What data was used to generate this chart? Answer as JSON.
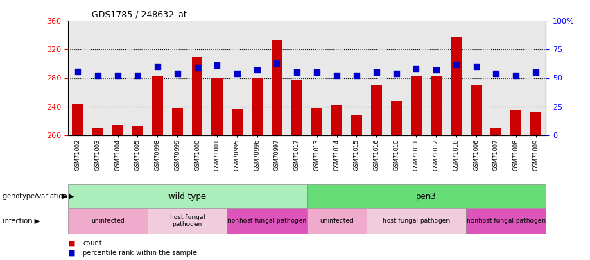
{
  "title": "GDS1785 / 248632_at",
  "samples": [
    "GSM71002",
    "GSM71003",
    "GSM71004",
    "GSM71005",
    "GSM70998",
    "GSM70999",
    "GSM71000",
    "GSM71001",
    "GSM70995",
    "GSM70996",
    "GSM70997",
    "GSM71017",
    "GSM71013",
    "GSM71014",
    "GSM71015",
    "GSM71016",
    "GSM71010",
    "GSM71011",
    "GSM71012",
    "GSM71018",
    "GSM71006",
    "GSM71007",
    "GSM71008",
    "GSM71009"
  ],
  "counts": [
    244,
    210,
    215,
    213,
    283,
    238,
    310,
    280,
    237,
    280,
    334,
    278,
    238,
    242,
    228,
    270,
    248,
    283,
    283,
    337,
    270,
    210,
    235,
    232
  ],
  "percentiles": [
    56,
    52,
    52,
    52,
    60,
    54,
    59,
    61,
    54,
    57,
    63,
    55,
    55,
    52,
    52,
    55,
    54,
    58,
    57,
    62,
    60,
    54,
    52,
    55
  ],
  "ylim_left": [
    200,
    360
  ],
  "yticks_left": [
    200,
    240,
    280,
    320,
    360
  ],
  "ylim_right": [
    0,
    100
  ],
  "yticks_right": [
    0,
    25,
    50,
    75,
    100
  ],
  "bar_color": "#cc0000",
  "dot_color": "#0000cc",
  "bar_width": 0.55,
  "genotype_groups": [
    {
      "label": "wild type",
      "start": 0,
      "end": 11,
      "color": "#aaeebb"
    },
    {
      "label": "pen3",
      "start": 12,
      "end": 23,
      "color": "#66dd77"
    }
  ],
  "infection_groups": [
    {
      "label": "uninfected",
      "start": 0,
      "end": 3,
      "color": "#f0aacc"
    },
    {
      "label": "host fungal\npathogen",
      "start": 4,
      "end": 7,
      "color": "#f0ccdd"
    },
    {
      "label": "nonhost fungal pathogen",
      "start": 8,
      "end": 11,
      "color": "#dd55bb"
    },
    {
      "label": "uninfected",
      "start": 12,
      "end": 14,
      "color": "#f0aacc"
    },
    {
      "label": "host fungal pathogen",
      "start": 15,
      "end": 19,
      "color": "#f0ccdd"
    },
    {
      "label": "nonhost fungal pathogen",
      "start": 20,
      "end": 23,
      "color": "#dd55bb"
    }
  ],
  "grid_yticks": [
    240,
    280,
    320
  ],
  "dot_size": 40,
  "bg_color": "#e8e8e8"
}
